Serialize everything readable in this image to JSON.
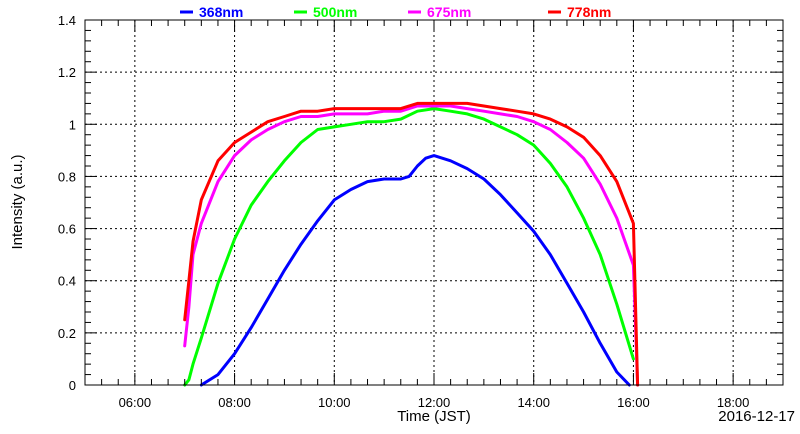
{
  "chart_data": {
    "type": "line",
    "title": "",
    "xlabel": "Time (JST)",
    "ylabel": "Intensity (a.u.)",
    "date_label": "2016-12-17",
    "x_unit": "hour",
    "xlim": [
      "05:00",
      "19:00"
    ],
    "ylim": [
      0,
      1.4
    ],
    "x_ticks": [
      "06:00",
      "08:00",
      "10:00",
      "12:00",
      "14:00",
      "16:00",
      "18:00"
    ],
    "y_ticks": [
      "0",
      "0.2",
      "0.4",
      "0.6",
      "0.8",
      "1",
      "1.2",
      "1.4"
    ],
    "grid": true,
    "legend_position": "top",
    "series": [
      {
        "name": "368nm",
        "color": "#0000ff",
        "x": [
          "07:20",
          "07:40",
          "08:00",
          "08:20",
          "08:40",
          "09:00",
          "09:20",
          "09:40",
          "10:00",
          "10:20",
          "10:40",
          "11:00",
          "11:20",
          "11:30",
          "11:40",
          "11:50",
          "12:00",
          "12:20",
          "12:40",
          "13:00",
          "13:20",
          "13:40",
          "14:00",
          "14:20",
          "14:40",
          "15:00",
          "15:20",
          "15:40",
          "15:55"
        ],
        "y": [
          0.0,
          0.04,
          0.12,
          0.22,
          0.33,
          0.44,
          0.54,
          0.63,
          0.71,
          0.75,
          0.78,
          0.79,
          0.79,
          0.8,
          0.84,
          0.87,
          0.88,
          0.86,
          0.83,
          0.79,
          0.73,
          0.66,
          0.59,
          0.5,
          0.39,
          0.28,
          0.16,
          0.05,
          0.0
        ]
      },
      {
        "name": "500nm",
        "color": "#00ff00",
        "x": [
          "07:00",
          "07:05",
          "07:10",
          "07:20",
          "07:40",
          "08:00",
          "08:20",
          "08:40",
          "09:00",
          "09:20",
          "09:40",
          "10:00",
          "10:20",
          "10:40",
          "11:00",
          "11:20",
          "11:40",
          "12:00",
          "12:20",
          "12:40",
          "13:00",
          "13:20",
          "13:40",
          "14:00",
          "14:20",
          "14:40",
          "15:00",
          "15:20",
          "15:40",
          "16:00"
        ],
        "y": [
          0.0,
          0.02,
          0.08,
          0.18,
          0.39,
          0.56,
          0.69,
          0.78,
          0.86,
          0.93,
          0.98,
          0.99,
          1.0,
          1.01,
          1.01,
          1.02,
          1.05,
          1.06,
          1.05,
          1.04,
          1.02,
          0.99,
          0.96,
          0.92,
          0.85,
          0.76,
          0.64,
          0.5,
          0.31,
          0.1
        ]
      },
      {
        "name": "675nm",
        "color": "#ff00ff",
        "x": [
          "07:00",
          "07:05",
          "07:10",
          "07:20",
          "07:40",
          "08:00",
          "08:20",
          "08:40",
          "09:00",
          "09:20",
          "09:40",
          "10:00",
          "10:20",
          "10:40",
          "11:00",
          "11:20",
          "11:40",
          "12:00",
          "12:20",
          "12:40",
          "13:00",
          "13:20",
          "13:40",
          "14:00",
          "14:20",
          "14:40",
          "15:00",
          "15:20",
          "15:40",
          "16:00",
          "16:05"
        ],
        "y": [
          0.15,
          0.3,
          0.5,
          0.62,
          0.78,
          0.88,
          0.94,
          0.98,
          1.01,
          1.03,
          1.03,
          1.04,
          1.04,
          1.04,
          1.05,
          1.05,
          1.07,
          1.07,
          1.07,
          1.06,
          1.05,
          1.04,
          1.03,
          1.01,
          0.98,
          0.93,
          0.87,
          0.77,
          0.64,
          0.46,
          0.0
        ]
      },
      {
        "name": "778nm",
        "color": "#ff0000",
        "x": [
          "07:00",
          "07:05",
          "07:10",
          "07:20",
          "07:40",
          "08:00",
          "08:20",
          "08:40",
          "09:00",
          "09:20",
          "09:40",
          "10:00",
          "10:20",
          "10:40",
          "11:00",
          "11:20",
          "11:40",
          "12:00",
          "12:20",
          "12:40",
          "13:00",
          "13:20",
          "13:40",
          "14:00",
          "14:20",
          "14:40",
          "15:00",
          "15:20",
          "15:40",
          "16:00",
          "16:05"
        ],
        "y": [
          0.25,
          0.4,
          0.55,
          0.71,
          0.86,
          0.93,
          0.97,
          1.01,
          1.03,
          1.05,
          1.05,
          1.06,
          1.06,
          1.06,
          1.06,
          1.06,
          1.08,
          1.08,
          1.08,
          1.08,
          1.07,
          1.06,
          1.05,
          1.04,
          1.02,
          0.99,
          0.95,
          0.88,
          0.78,
          0.62,
          0.0
        ]
      }
    ]
  }
}
